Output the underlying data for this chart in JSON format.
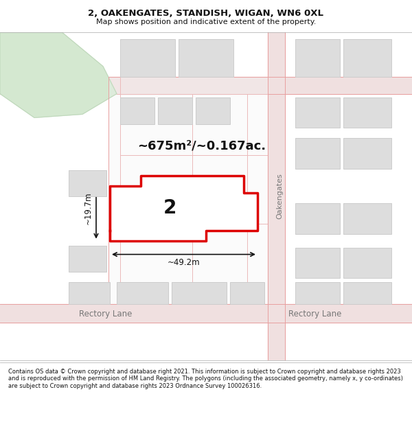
{
  "title": "2, OAKENGATES, STANDISH, WIGAN, WN6 0XL",
  "subtitle": "Map shows position and indicative extent of the property.",
  "footer": "Contains OS data © Crown copyright and database right 2021. This information is subject to Crown copyright and database rights 2023 and is reproduced with the permission of HM Land Registry. The polygons (including the associated geometry, namely x, y co-ordinates) are subject to Crown copyright and database rights 2023 Ordnance Survey 100026316.",
  "bg_color": "#f8f8f8",
  "map_bg": "#ffffff",
  "road_color": "#e8a0a0",
  "road_fill": "#f5e8e8",
  "building_fill": "#dddddd",
  "building_edge": "#cccccc",
  "green_fill": "#d4e8d0",
  "green_edge": "#c0d8bc",
  "highlight_fill": "#ffffff",
  "highlight_edge": "#dd0000",
  "highlight_lw": 2.5,
  "area_text": "~675m²/~0.167ac.",
  "width_text": "~49.2m",
  "height_text": "~19.7m",
  "number_text": "2",
  "street_name": "Oakengates",
  "lane_name": "Rectory Lane",
  "lane_name2": "Rectory Lane"
}
